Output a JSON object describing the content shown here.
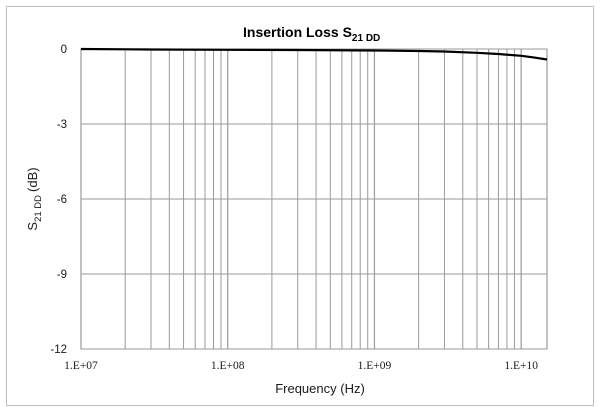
{
  "chart_data": {
    "type": "line",
    "title": "Insertion Loss S",
    "title_sub": "21 DD",
    "xlabel": "Frequency (Hz)",
    "ylabel": "S",
    "ylabel_sub": "21 DD",
    "ylabel_unit": "(dB)",
    "x_scale": "log",
    "xlim": [
      10000000,
      15000000000
    ],
    "ylim": [
      -12,
      0
    ],
    "x_tick_values": [
      10000000,
      100000000,
      1000000000,
      10000000000
    ],
    "x_tick_labels": [
      "1.E+07",
      "1.E+08",
      "1.E+09",
      "1.E+10"
    ],
    "y_tick_values": [
      0,
      -3,
      -6,
      -9,
      -12
    ],
    "y_tick_labels": [
      "0",
      "-3",
      "-6",
      "-9",
      "-12"
    ],
    "grid": true,
    "line_color": "#000000",
    "grid_color": "#9a9a9a",
    "series": [
      {
        "x": [
          10000000,
          30000000,
          100000000,
          300000000,
          1000000000,
          2000000000,
          3000000000,
          5000000000,
          7000000000,
          10000000000,
          12000000000,
          15000000000
        ],
        "y": [
          0,
          -0.02,
          -0.03,
          -0.04,
          -0.06,
          -0.08,
          -0.1,
          -0.15,
          -0.2,
          -0.27,
          -0.33,
          -0.42
        ]
      }
    ]
  }
}
